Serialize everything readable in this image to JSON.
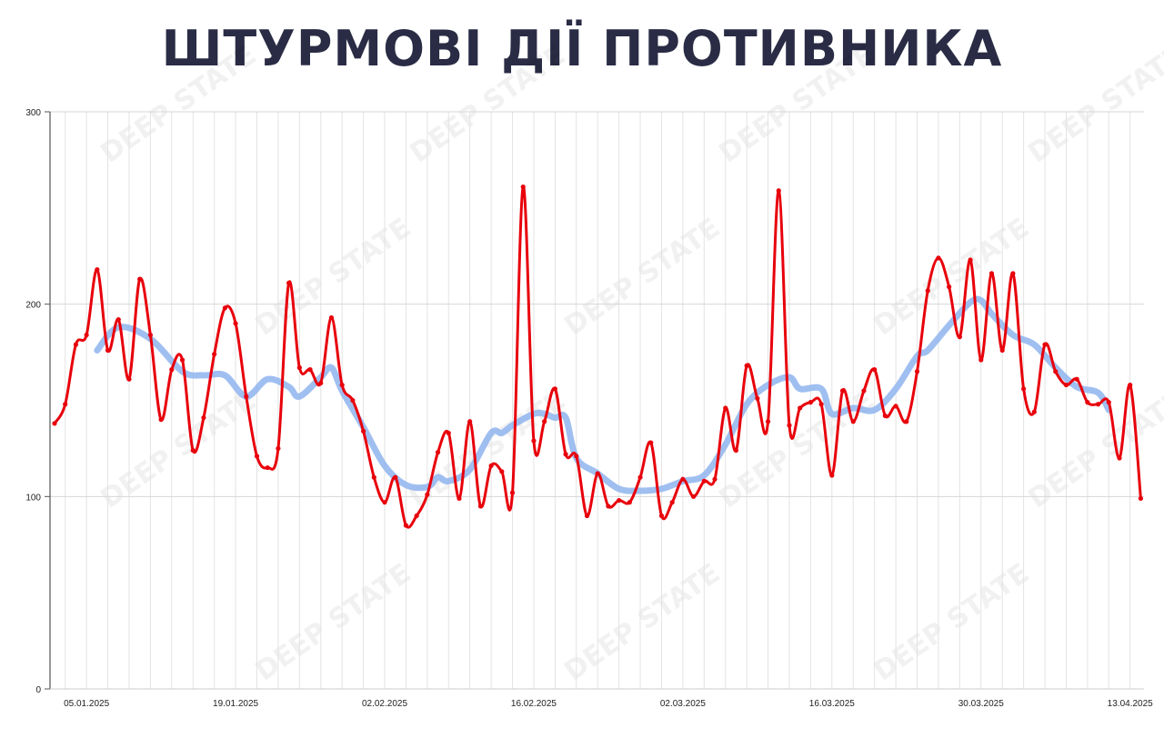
{
  "title": "ШТУРМОВІ ДІЇ ПРОТИВНИКА",
  "watermark": "DEEP STATE",
  "chart_data": {
    "type": "line",
    "title": "ШТУРМОВІ ДІЇ ПРОТИВНИКА",
    "xlabel": "",
    "ylabel": "",
    "ylim": [
      0,
      300
    ],
    "yticks": [
      "0",
      "100",
      "200",
      "300"
    ],
    "xtick_labels": [
      "05.01.2025",
      "19.01.2025",
      "02.02.2025",
      "16.02.2025",
      "02.03.2025",
      "16.03.2025",
      "30.03.2025",
      "13.04.2025"
    ],
    "grid": true,
    "x": [
      "02.01.2025",
      "03.01.2025",
      "04.01.2025",
      "05.01.2025",
      "06.01.2025",
      "07.01.2025",
      "08.01.2025",
      "09.01.2025",
      "10.01.2025",
      "11.01.2025",
      "12.01.2025",
      "13.01.2025",
      "14.01.2025",
      "15.01.2025",
      "16.01.2025",
      "17.01.2025",
      "18.01.2025",
      "19.01.2025",
      "20.01.2025",
      "21.01.2025",
      "22.01.2025",
      "23.01.2025",
      "24.01.2025",
      "25.01.2025",
      "26.01.2025",
      "27.01.2025",
      "28.01.2025",
      "29.01.2025",
      "30.01.2025",
      "31.01.2025",
      "01.02.2025",
      "02.02.2025",
      "03.02.2025",
      "04.02.2025",
      "05.02.2025",
      "06.02.2025",
      "07.02.2025",
      "08.02.2025",
      "09.02.2025",
      "10.02.2025",
      "11.02.2025",
      "12.02.2025",
      "13.02.2025",
      "14.02.2025",
      "15.02.2025",
      "16.02.2025",
      "17.02.2025",
      "18.02.2025",
      "19.02.2025",
      "20.02.2025",
      "21.02.2025",
      "22.02.2025",
      "23.02.2025",
      "24.02.2025",
      "25.02.2025",
      "26.02.2025",
      "27.02.2025",
      "28.02.2025",
      "01.03.2025",
      "02.03.2025",
      "03.03.2025",
      "04.03.2025",
      "05.03.2025",
      "06.03.2025",
      "07.03.2025",
      "08.03.2025",
      "09.03.2025",
      "10.03.2025",
      "11.03.2025",
      "12.03.2025",
      "13.03.2025",
      "14.03.2025",
      "15.03.2025",
      "16.03.2025",
      "17.03.2025",
      "18.03.2025",
      "19.03.2025",
      "20.03.2025",
      "21.03.2025",
      "22.03.2025",
      "23.03.2025",
      "24.03.2025",
      "25.03.2025",
      "26.03.2025",
      "27.03.2025",
      "28.03.2025",
      "29.03.2025",
      "30.03.2025",
      "31.03.2025",
      "01.04.2025",
      "02.04.2025",
      "03.04.2025",
      "04.04.2025",
      "05.04.2025",
      "06.04.2025",
      "07.04.2025",
      "08.04.2025",
      "09.04.2025",
      "10.04.2025",
      "11.04.2025",
      "12.04.2025",
      "13.04.2025",
      "14.04.2025"
    ],
    "series": [
      {
        "color": "#e8000b",
        "values": [
          138,
          148,
          179,
          184,
          218,
          176,
          192,
          161,
          213,
          184,
          140,
          166,
          171,
          124,
          141,
          174,
          198,
          190,
          152,
          121,
          115,
          125,
          211,
          167,
          166,
          159,
          193,
          158,
          150,
          134,
          110,
          97,
          110,
          85,
          90,
          101,
          123,
          133,
          99,
          139,
          95,
          116,
          113,
          102,
          261,
          129,
          139,
          156,
          122,
          121,
          90,
          112,
          95,
          98,
          97,
          110,
          128,
          90,
          97,
          109,
          100,
          108,
          109,
          146,
          124,
          168,
          151,
          139,
          259,
          137,
          146,
          149,
          148,
          111,
          155,
          139,
          155,
          166,
          142,
          147,
          139,
          165,
          207,
          224,
          209,
          183,
          223,
          171,
          216,
          176,
          216,
          156,
          144,
          179,
          165,
          158,
          161,
          149,
          148,
          149,
          120,
          158,
          99
        ]
      },
      {
        "color": "#8fb4ee",
        "x": [
          "06.01.2025",
          "08.01.2025",
          "11.01.2025",
          "14.01.2025",
          "16.01.2025",
          "18.01.2025",
          "20.01.2025",
          "22.01.2025",
          "24.01.2025",
          "25.01.2025",
          "27.01.2025",
          "28.01.2025",
          "29.01.2025",
          "31.01.2025",
          "02.02.2025",
          "04.02.2025",
          "06.02.2025",
          "07.02.2025",
          "08.02.2025",
          "10.02.2025",
          "12.02.2025",
          "13.02.2025",
          "14.02.2025",
          "16.02.2025",
          "17.02.2025",
          "18.02.2025",
          "19.02.2025",
          "20.02.2025",
          "22.02.2025",
          "24.02.2025",
          "26.02.2025",
          "28.02.2025",
          "02.03.2025",
          "04.03.2025",
          "06.03.2025",
          "08.03.2025",
          "10.03.2025",
          "12.03.2025",
          "13.03.2025",
          "15.03.2025",
          "16.03.2025",
          "18.03.2025",
          "20.03.2025",
          "22.03.2025",
          "24.03.2025",
          "25.03.2025",
          "27.03.2025",
          "29.03.2025",
          "30.03.2025",
          "31.03.2025",
          "02.04.2025",
          "04.04.2025",
          "06.04.2025",
          "08.04.2025",
          "10.04.2025",
          "11.04.2025"
        ],
        "values": [
          176,
          188,
          182,
          165,
          163,
          163,
          152,
          161,
          157,
          152,
          162,
          167,
          155,
          136,
          116,
          106,
          105,
          110,
          108,
          114,
          133,
          133,
          137,
          143,
          143,
          141,
          141,
          120,
          112,
          104,
          103,
          104,
          108,
          111,
          127,
          148,
          158,
          162,
          156,
          156,
          143,
          146,
          145,
          156,
          173,
          176,
          189,
          201,
          202,
          195,
          184,
          179,
          167,
          157,
          154,
          145
        ]
      }
    ]
  }
}
